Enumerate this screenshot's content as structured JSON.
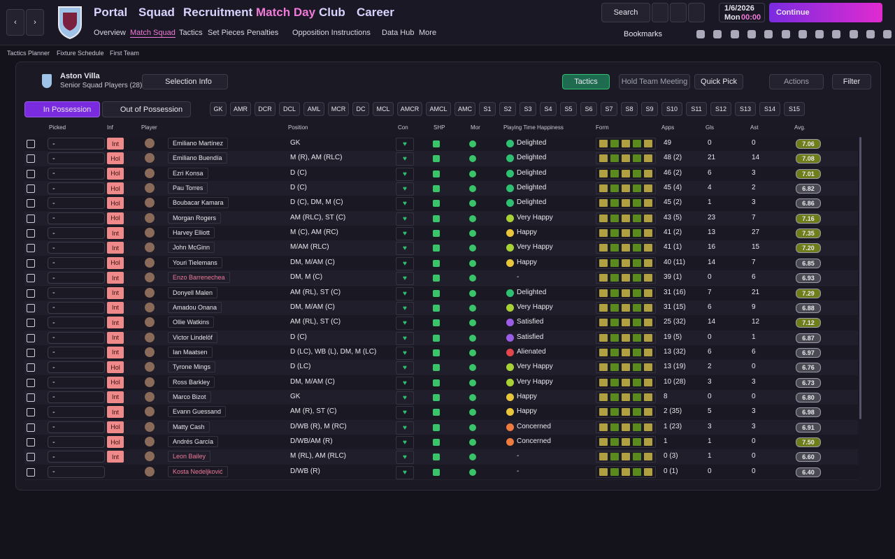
{
  "header": {
    "nav": [
      "Portal",
      "Squad",
      "Recruitment",
      "Match Day",
      "Club",
      "Career"
    ],
    "subnav": [
      "Overview",
      "Match Squad",
      "Tactics",
      "Set Pieces",
      "Penalties",
      "Opposition Instructions",
      "Data Hub",
      "More"
    ],
    "search": "Search",
    "date": "1/6/2026",
    "day": "Mon",
    "time": "00:00",
    "continue": "Continue",
    "bookmarks": "Bookmarks"
  },
  "breadcrumb": [
    "Tactics Planner",
    "Fixture Schedule",
    "First Team"
  ],
  "team": {
    "name": "Aston Villa",
    "subtitle": "Senior Squad Players (28)",
    "selection_info": "Selection Info"
  },
  "buttons": [
    "Tactics",
    "Hold Team Meeting",
    "Quick Pick",
    "Actions",
    "Filter"
  ],
  "tabs": [
    "In Possession",
    "Out of Possession"
  ],
  "positions": [
    "GK",
    "AMR",
    "DCR",
    "DCL",
    "AML",
    "MCR",
    "DC",
    "MCL",
    "AMCR",
    "AMCL",
    "AMC",
    "S1",
    "S2",
    "S3",
    "S4",
    "S5",
    "S6",
    "S7",
    "S8",
    "S9",
    "S10",
    "S11",
    "S12",
    "S13",
    "S14",
    "S15"
  ],
  "table": {
    "columns": [
      "Picked",
      "Inf",
      "Player",
      "Position",
      "Con",
      "SHP",
      "Mor",
      "Playing Time Happiness",
      "Form",
      "Apps",
      "Gls",
      "Ast",
      "Avg."
    ],
    "rows": [
      {
        "picked": "-",
        "inf": "Int",
        "name": "Emiliano Martínez",
        "position": "GK",
        "happiness": "Delighted",
        "mood": "#2fbf71",
        "apps": "49",
        "gls": "0",
        "ast": "0",
        "avg": "7.06"
      },
      {
        "picked": "-",
        "inf": "Hol",
        "name": "Emiliano Buendía",
        "position": "M (R), AM (RLC)",
        "happiness": "Delighted",
        "mood": "#2fbf71",
        "apps": "48 (2)",
        "gls": "21",
        "ast": "14",
        "avg": "7.08"
      },
      {
        "picked": "-",
        "inf": "Hol",
        "name": "Ezri Konsa",
        "position": "D (C)",
        "happiness": "Delighted",
        "mood": "#2fbf71",
        "apps": "46 (2)",
        "gls": "6",
        "ast": "3",
        "avg": "7.01"
      },
      {
        "picked": "-",
        "inf": "Hol",
        "name": "Pau Torres",
        "position": "D (C)",
        "happiness": "Delighted",
        "mood": "#2fbf71",
        "apps": "45 (4)",
        "gls": "4",
        "ast": "2",
        "avg": "6.82"
      },
      {
        "picked": "-",
        "inf": "Hol",
        "name": "Boubacar Kamara",
        "position": "D (C), DM, M (C)",
        "happiness": "Delighted",
        "mood": "#2fbf71",
        "apps": "45 (2)",
        "gls": "1",
        "ast": "3",
        "avg": "6.86"
      },
      {
        "picked": "-",
        "inf": "Hol",
        "name": "Morgan Rogers",
        "position": "AM (RLC), ST (C)",
        "happiness": "Very Happy",
        "mood": "#a8d136",
        "apps": "43 (5)",
        "gls": "23",
        "ast": "7",
        "avg": "7.16"
      },
      {
        "picked": "-",
        "inf": "Int",
        "name": "Harvey Elliott",
        "position": "M (C), AM (RC)",
        "happiness": "Happy",
        "mood": "#e8c53a",
        "apps": "41 (2)",
        "gls": "13",
        "ast": "27",
        "avg": "7.35"
      },
      {
        "picked": "-",
        "inf": "Int",
        "name": "John McGinn",
        "position": "M/AM (RLC)",
        "happiness": "Very Happy",
        "mood": "#a8d136",
        "apps": "41 (1)",
        "gls": "16",
        "ast": "15",
        "avg": "7.20"
      },
      {
        "picked": "-",
        "inf": "Hol",
        "name": "Youri Tielemans",
        "position": "DM, M/AM (C)",
        "happiness": "Happy",
        "mood": "#e8c53a",
        "apps": "40 (11)",
        "gls": "14",
        "ast": "7",
        "avg": "6.85"
      },
      {
        "picked": "-",
        "inf": "Int",
        "name": "Enzo Barrenechea",
        "color": "#f07a9a",
        "position": "DM, M (C)",
        "happiness": "-",
        "apps": "39 (1)",
        "gls": "0",
        "ast": "6",
        "avg": "6.93"
      },
      {
        "picked": "-",
        "inf": "Int",
        "name": "Donyell Malen",
        "position": "AM (RL), ST (C)",
        "happiness": "Delighted",
        "mood": "#2fbf71",
        "apps": "31 (16)",
        "gls": "7",
        "ast": "21",
        "avg": "7.29"
      },
      {
        "picked": "-",
        "inf": "Int",
        "name": "Amadou Onana",
        "position": "DM, M/AM (C)",
        "happiness": "Very Happy",
        "mood": "#a8d136",
        "apps": "31 (15)",
        "gls": "6",
        "ast": "9",
        "avg": "6.88"
      },
      {
        "picked": "-",
        "inf": "Int",
        "name": "Ollie Watkins",
        "position": "AM (RL), ST (C)",
        "happiness": "Satisfied",
        "mood": "#9b5de5",
        "apps": "25 (32)",
        "gls": "14",
        "ast": "12",
        "avg": "7.12"
      },
      {
        "picked": "-",
        "inf": "Int",
        "name": "Victor Lindelöf",
        "position": "D (C)",
        "happiness": "Satisfied",
        "mood": "#9b5de5",
        "apps": "19 (5)",
        "gls": "0",
        "ast": "1",
        "avg": "6.87"
      },
      {
        "picked": "-",
        "inf": "Int",
        "name": "Ian Maatsen",
        "position": "D (LC), WB (L), DM, M (LC)",
        "happiness": "Alienated",
        "mood": "#e0464a",
        "apps": "13 (32)",
        "gls": "6",
        "ast": "6",
        "avg": "6.97"
      },
      {
        "picked": "-",
        "inf": "Hol",
        "name": "Tyrone Mings",
        "position": "D (LC)",
        "happiness": "Very Happy",
        "mood": "#a8d136",
        "apps": "13 (19)",
        "gls": "2",
        "ast": "0",
        "avg": "6.76"
      },
      {
        "picked": "-",
        "inf": "Hol",
        "name": "Ross Barkley",
        "position": "DM, M/AM (C)",
        "happiness": "Very Happy",
        "mood": "#a8d136",
        "apps": "10 (28)",
        "gls": "3",
        "ast": "3",
        "avg": "6.73"
      },
      {
        "picked": "-",
        "inf": "Int",
        "name": "Marco Bizot",
        "position": "GK",
        "happiness": "Happy",
        "mood": "#e8c53a",
        "apps": "8",
        "gls": "0",
        "ast": "0",
        "avg": "6.80"
      },
      {
        "picked": "-",
        "inf": "Int",
        "name": "Evann Guessand",
        "position": "AM (R), ST (C)",
        "happiness": "Happy",
        "mood": "#e8c53a",
        "apps": "2 (35)",
        "gls": "5",
        "ast": "3",
        "avg": "6.98"
      },
      {
        "picked": "-",
        "inf": "Hol",
        "name": "Matty Cash",
        "position": "D/WB (R), M (RC)",
        "happiness": "Concerned",
        "mood": "#f07b3f",
        "apps": "1 (23)",
        "gls": "3",
        "ast": "3",
        "avg": "6.91"
      },
      {
        "picked": "-",
        "inf": "Hol",
        "name": "Andrés García",
        "position": "D/WB/AM (R)",
        "happiness": "Concerned",
        "mood": "#f07b3f",
        "apps": "1",
        "gls": "1",
        "ast": "0",
        "avg": "7.50"
      },
      {
        "picked": "-",
        "inf": "Int",
        "name": "Leon Bailey",
        "color": "#f07a9a",
        "position": "M (RL), AM (RLC)",
        "happiness": "-",
        "apps": "0 (3)",
        "gls": "1",
        "ast": "0",
        "avg": "6.60"
      },
      {
        "picked": "-",
        "name": "Kosta Nedeljković",
        "color": "#f07a9a",
        "position": "D/WB (R)",
        "happiness": "-",
        "apps": "0 (1)",
        "gls": "0",
        "ast": "0",
        "avg": "6.40"
      }
    ]
  }
}
